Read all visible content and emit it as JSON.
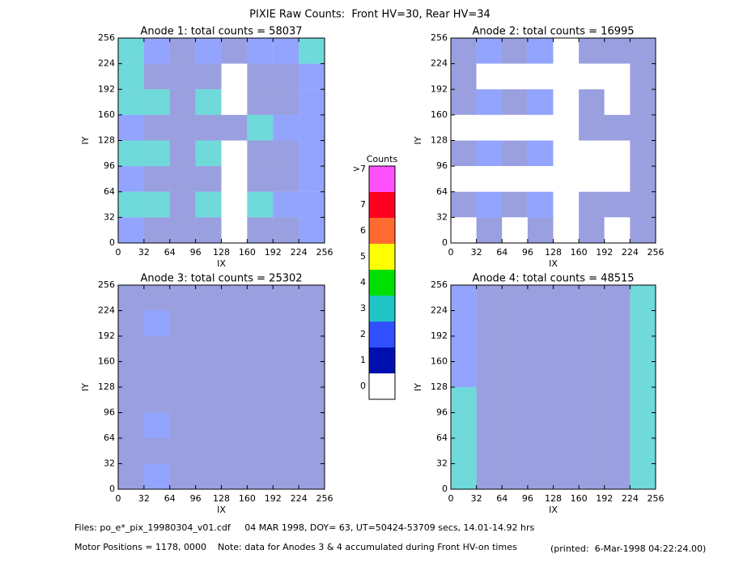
{
  "title": "PIXIE Raw Counts:  Front HV=30, Rear HV=34",
  "chart_data": [
    {
      "type": "heatmap",
      "title": "Anode 1: total counts = 58037",
      "xlabel": "IX",
      "ylabel": "IY",
      "xlim": [
        0,
        256
      ],
      "ylim": [
        0,
        256
      ],
      "xticks": [
        0,
        32,
        64,
        96,
        128,
        160,
        192,
        224,
        256
      ],
      "yticks": [
        0,
        32,
        64,
        96,
        128,
        160,
        192,
        224,
        256
      ],
      "values": [
        [
          3,
          2,
          1,
          2,
          1,
          2,
          2,
          3
        ],
        [
          3,
          1,
          1,
          1,
          0,
          1,
          1,
          2
        ],
        [
          3,
          3,
          1,
          3,
          0,
          1,
          1,
          2
        ],
        [
          2,
          1,
          1,
          1,
          1,
          3,
          2,
          2
        ],
        [
          3,
          3,
          1,
          3,
          0,
          1,
          1,
          2
        ],
        [
          2,
          1,
          1,
          1,
          0,
          1,
          1,
          2
        ],
        [
          3,
          3,
          1,
          3,
          0,
          3,
          2,
          2
        ],
        [
          2,
          1,
          1,
          1,
          0,
          1,
          1,
          2
        ]
      ]
    },
    {
      "type": "heatmap",
      "title": "Anode 2: total counts = 16995",
      "xlabel": "IX",
      "ylabel": "IY",
      "xlim": [
        0,
        256
      ],
      "ylim": [
        0,
        256
      ],
      "xticks": [
        0,
        32,
        64,
        96,
        128,
        160,
        192,
        224,
        256
      ],
      "yticks": [
        0,
        32,
        64,
        96,
        128,
        160,
        192,
        224,
        256
      ],
      "values": [
        [
          1,
          2,
          1,
          2,
          0,
          1,
          1,
          1
        ],
        [
          1,
          0,
          0,
          0,
          0,
          0,
          0,
          1
        ],
        [
          1,
          2,
          1,
          2,
          0,
          1,
          0,
          1
        ],
        [
          0,
          0,
          0,
          0,
          0,
          1,
          1,
          1
        ],
        [
          1,
          2,
          1,
          2,
          0,
          0,
          0,
          1
        ],
        [
          0,
          0,
          0,
          0,
          0,
          0,
          0,
          1
        ],
        [
          1,
          2,
          1,
          2,
          0,
          1,
          1,
          1
        ],
        [
          0,
          1,
          0,
          1,
          0,
          1,
          0,
          1
        ]
      ]
    },
    {
      "type": "heatmap",
      "title": "Anode 3: total counts = 25302",
      "xlabel": "IX",
      "ylabel": "IY",
      "xlim": [
        0,
        256
      ],
      "ylim": [
        0,
        256
      ],
      "xticks": [
        0,
        32,
        64,
        96,
        128,
        160,
        192,
        224,
        256
      ],
      "yticks": [
        0,
        32,
        64,
        96,
        128,
        160,
        192,
        224,
        256
      ],
      "values": [
        [
          1,
          1,
          1,
          1,
          1,
          1,
          1,
          1
        ],
        [
          1,
          2,
          1,
          1,
          1,
          1,
          1,
          1
        ],
        [
          1,
          1,
          1,
          1,
          1,
          1,
          1,
          1
        ],
        [
          1,
          1,
          1,
          1,
          1,
          1,
          1,
          1
        ],
        [
          1,
          1,
          1,
          1,
          1,
          1,
          1,
          1
        ],
        [
          1,
          2,
          1,
          1,
          1,
          1,
          1,
          1
        ],
        [
          1,
          1,
          1,
          1,
          1,
          1,
          1,
          1
        ],
        [
          1,
          2,
          1,
          1,
          1,
          1,
          1,
          1
        ]
      ]
    },
    {
      "type": "heatmap",
      "title": "Anode 4: total counts = 48515",
      "xlabel": "IX",
      "ylabel": "IY",
      "xlim": [
        0,
        256
      ],
      "ylim": [
        0,
        256
      ],
      "xticks": [
        0,
        32,
        64,
        96,
        128,
        160,
        192,
        224,
        256
      ],
      "yticks": [
        0,
        32,
        64,
        96,
        128,
        160,
        192,
        224,
        256
      ],
      "values": [
        [
          2,
          1,
          1,
          1,
          1,
          1,
          1,
          3
        ],
        [
          2,
          1,
          1,
          1,
          1,
          1,
          1,
          3
        ],
        [
          2,
          1,
          1,
          1,
          1,
          1,
          1,
          3
        ],
        [
          2,
          1,
          1,
          1,
          1,
          1,
          1,
          3
        ],
        [
          3,
          1,
          1,
          1,
          1,
          1,
          1,
          3
        ],
        [
          3,
          1,
          1,
          1,
          1,
          1,
          1,
          3
        ],
        [
          3,
          1,
          1,
          1,
          1,
          1,
          1,
          3
        ],
        [
          3,
          1,
          1,
          1,
          1,
          1,
          1,
          3
        ]
      ]
    }
  ],
  "colorbar": {
    "title": "Counts",
    "levels": [
      {
        "label": "0",
        "color": "#ffffff"
      },
      {
        "label": "1",
        "color": "#0010b0"
      },
      {
        "label": "2",
        "color": "#3050ff"
      },
      {
        "label": "3",
        "color": "#20c4c4"
      },
      {
        "label": "4",
        "color": "#00e000"
      },
      {
        "label": "5",
        "color": "#ffff00"
      },
      {
        "label": "6",
        "color": "#ff6a30"
      },
      {
        "label": "7",
        "color": "#ff0020"
      },
      {
        "label": ">7",
        "color": "#ff50ff"
      }
    ]
  },
  "footer": {
    "files": "Files: po_e*_pix_19980304_v01.cdf     04 MAR 1998, DOY= 63, UT=50424-53709 secs, 14.01-14.92 hrs",
    "motor": "Motor Positions = 1178, 0000    Note: data for Anodes 3 & 4 accumulated during Front HV-on times",
    "printed": "(printed:  6-Mar-1998 04:22:24.00)"
  }
}
